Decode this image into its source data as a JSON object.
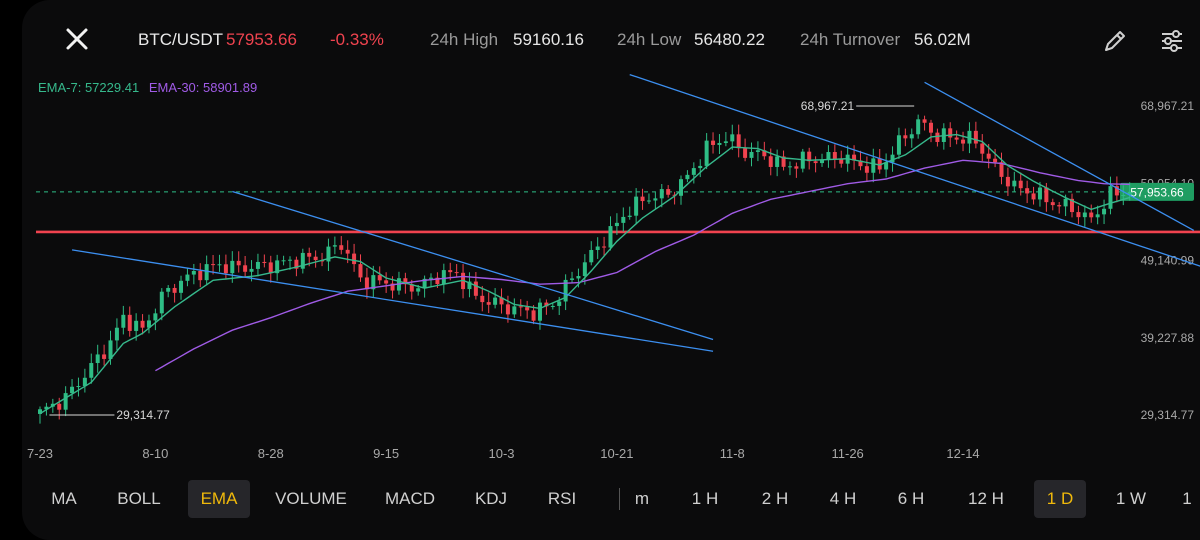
{
  "header": {
    "pair": "BTC/USDT",
    "last_price": "57953.66",
    "change_pct": "-0.33%",
    "high_label": "24h High",
    "high_value": "59160.16",
    "low_label": "24h Low",
    "low_value": "56480.22",
    "turnover_label": "24h Turnover",
    "turnover_value": "56.02M",
    "icons": [
      "close-icon",
      "pencil-icon",
      "sliders-icon"
    ]
  },
  "legend": {
    "ema7": "EMA-7: 57229.41",
    "ema30": "EMA-30: 58901.89"
  },
  "colors": {
    "up": "#2ebd85",
    "down": "#f0434f",
    "ema7": "#36b98c",
    "ema30": "#a05be6",
    "trendline": "#3c8ff0",
    "support": "#f0434f",
    "active": "#f0b90b"
  },
  "bottom_bar": {
    "indicators": [
      "MA",
      "BOLL",
      "EMA",
      "VOLUME",
      "MACD",
      "KDJ",
      "RSI"
    ],
    "active_indicator": "EMA",
    "timeframes": [
      "m",
      "1 H",
      "2 H",
      "4 H",
      "6 H",
      "12 H",
      "1 D",
      "1 W",
      "1"
    ],
    "active_timeframe": "1 D"
  },
  "chart_data": {
    "type": "candlestick",
    "interval": "1D",
    "x_ticks": [
      "7-23",
      "8-10",
      "8-28",
      "9-15",
      "10-3",
      "10-21",
      "11-8",
      "11-26",
      "12-14"
    ],
    "y_ticks": [
      "68,967.21",
      "59,054.10",
      "49,140.99",
      "39,227.88",
      "29,314.77"
    ],
    "ylim": [
      29314.77,
      68967.21
    ],
    "current_price": 57953.66,
    "current_price_label": "57,953.66",
    "max_marker": {
      "label": "68,967.21",
      "value": 68967.21
    },
    "min_marker": {
      "label": "29,314.77",
      "value": 29314.77
    },
    "support_level": 52800,
    "close_path": [
      [
        0,
        29600
      ],
      [
        4,
        31500
      ],
      [
        8,
        35500
      ],
      [
        11,
        38600
      ],
      [
        13,
        41800
      ],
      [
        16,
        40200
      ],
      [
        19,
        44500
      ],
      [
        22,
        46500
      ],
      [
        25,
        47800
      ],
      [
        28,
        48600
      ],
      [
        31,
        48200
      ],
      [
        34,
        48400
      ],
      [
        37,
        48700
      ],
      [
        40,
        49200
      ],
      [
        44,
        49600
      ],
      [
        47,
        51400
      ],
      [
        50,
        46700
      ],
      [
        53,
        46400
      ],
      [
        56,
        46000
      ],
      [
        59,
        45700
      ],
      [
        62,
        47200
      ],
      [
        65,
        47500
      ],
      [
        68,
        44500
      ],
      [
        71,
        43600
      ],
      [
        74,
        42900
      ],
      [
        77,
        42500
      ],
      [
        80,
        43500
      ],
      [
        83,
        46800
      ],
      [
        86,
        49900
      ],
      [
        89,
        52800
      ],
      [
        92,
        55800
      ],
      [
        95,
        57300
      ],
      [
        98,
        57600
      ],
      [
        101,
        59800
      ],
      [
        104,
        63500
      ],
      [
        107,
        65000
      ],
      [
        110,
        63000
      ],
      [
        113,
        62600
      ],
      [
        116,
        61100
      ],
      [
        119,
        62000
      ],
      [
        122,
        62200
      ],
      [
        125,
        62400
      ],
      [
        128,
        61400
      ],
      [
        131,
        61000
      ],
      [
        134,
        64200
      ],
      [
        137,
        66900
      ],
      [
        140,
        65200
      ],
      [
        143,
        64900
      ],
      [
        146,
        64500
      ],
      [
        149,
        61000
      ],
      [
        152,
        58600
      ],
      [
        155,
        57700
      ],
      [
        158,
        56600
      ],
      [
        161,
        55800
      ],
      [
        164,
        54300
      ],
      [
        167,
        57600
      ],
      [
        170,
        57953.66
      ]
    ],
    "ema7_path": [
      [
        0,
        29500
      ],
      [
        8,
        33500
      ],
      [
        13,
        38500
      ],
      [
        16,
        39800
      ],
      [
        21,
        43200
      ],
      [
        27,
        46600
      ],
      [
        34,
        47200
      ],
      [
        40,
        48300
      ],
      [
        46,
        49600
      ],
      [
        50,
        49000
      ],
      [
        54,
        46900
      ],
      [
        60,
        45600
      ],
      [
        66,
        46600
      ],
      [
        70,
        45200
      ],
      [
        74,
        43500
      ],
      [
        78,
        43000
      ],
      [
        82,
        44400
      ],
      [
        86,
        47800
      ],
      [
        90,
        51600
      ],
      [
        94,
        54600
      ],
      [
        99,
        57400
      ],
      [
        104,
        61200
      ],
      [
        108,
        63700
      ],
      [
        112,
        63500
      ],
      [
        116,
        62300
      ],
      [
        120,
        62000
      ],
      [
        126,
        62200
      ],
      [
        131,
        61400
      ],
      [
        135,
        62700
      ],
      [
        139,
        65000
      ],
      [
        143,
        65300
      ],
      [
        147,
        64400
      ],
      [
        151,
        61300
      ],
      [
        155,
        59300
      ],
      [
        160,
        57200
      ],
      [
        164,
        55700
      ],
      [
        167,
        56500
      ],
      [
        170,
        57229.41
      ]
    ],
    "ema30_path": [
      [
        18,
        35000
      ],
      [
        24,
        37800
      ],
      [
        30,
        40200
      ],
      [
        36,
        41800
      ],
      [
        42,
        43600
      ],
      [
        48,
        45200
      ],
      [
        54,
        45900
      ],
      [
        60,
        46600
      ],
      [
        66,
        47100
      ],
      [
        72,
        46700
      ],
      [
        78,
        46100
      ],
      [
        84,
        46300
      ],
      [
        90,
        47600
      ],
      [
        96,
        50300
      ],
      [
        102,
        52400
      ],
      [
        108,
        55200
      ],
      [
        114,
        57000
      ],
      [
        120,
        58000
      ],
      [
        126,
        59000
      ],
      [
        132,
        59600
      ],
      [
        138,
        61000
      ],
      [
        144,
        62000
      ],
      [
        150,
        61600
      ],
      [
        156,
        60400
      ],
      [
        162,
        59400
      ],
      [
        166,
        59000
      ],
      [
        170,
        58901.89
      ]
    ],
    "trendlines": [
      {
        "from": [
          5,
          50500
        ],
        "to": [
          105,
          37500
        ]
      },
      {
        "from": [
          30,
          58000
        ],
        "to": [
          105,
          39000
        ]
      },
      {
        "from": [
          92,
          73000
        ],
        "to": [
          197,
          44000
        ]
      },
      {
        "from": [
          138,
          72000
        ],
        "to": [
          180,
          53000
        ]
      }
    ]
  }
}
